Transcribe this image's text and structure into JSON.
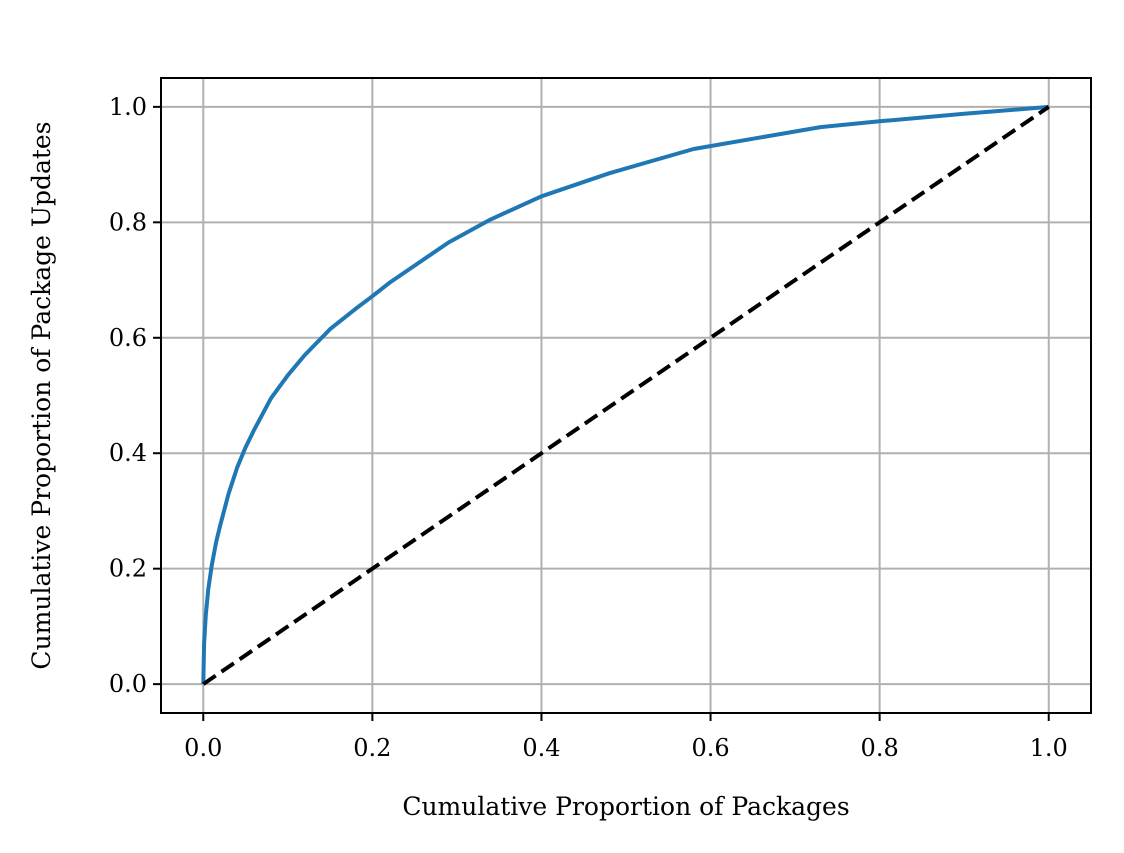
{
  "chart_data": {
    "type": "line",
    "title": "",
    "xlabel": "Cumulative Proportion of Packages",
    "ylabel": "Cumulative Proportion of Package Updates",
    "xlim": [
      -0.05,
      1.05
    ],
    "ylim": [
      -0.05,
      1.05
    ],
    "xticks": [
      "0.0",
      "0.2",
      "0.4",
      "0.6",
      "0.8",
      "1.0"
    ],
    "yticks": [
      "0.0",
      "0.2",
      "0.4",
      "0.6",
      "0.8",
      "1.0"
    ],
    "grid": true,
    "legend": "none",
    "series": [
      {
        "color": "#1f77b4",
        "style": "solid",
        "x": [
          0.0,
          0.001,
          0.003,
          0.006,
          0.01,
          0.015,
          0.02,
          0.03,
          0.04,
          0.05,
          0.06,
          0.08,
          0.1,
          0.12,
          0.15,
          0.18,
          0.2,
          0.22,
          0.25,
          0.29,
          0.34,
          0.4,
          0.48,
          0.58,
          0.73,
          0.8,
          0.9,
          1.0
        ],
        "y": [
          0.0,
          0.07,
          0.12,
          0.165,
          0.205,
          0.245,
          0.275,
          0.33,
          0.375,
          0.41,
          0.44,
          0.495,
          0.535,
          0.57,
          0.615,
          0.65,
          0.672,
          0.695,
          0.725,
          0.765,
          0.805,
          0.845,
          0.885,
          0.927,
          0.965,
          0.975,
          0.988,
          1.0
        ]
      },
      {
        "color": "#000000",
        "style": "dashed",
        "x": [
          0.0,
          1.0
        ],
        "y": [
          0.0,
          1.0
        ]
      }
    ]
  }
}
